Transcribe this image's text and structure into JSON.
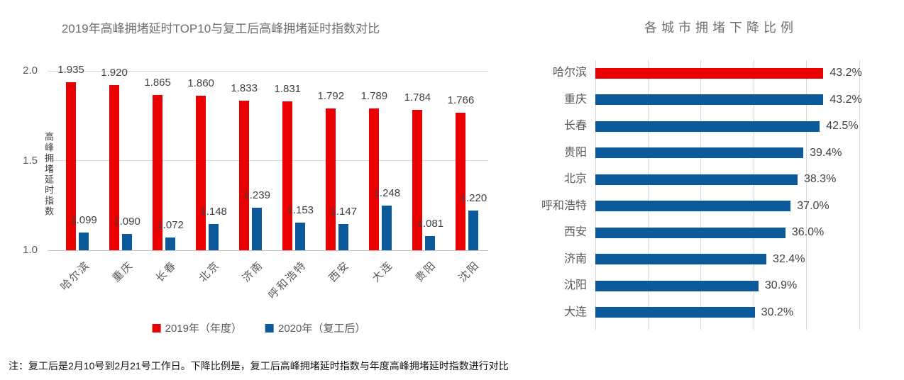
{
  "note": "注：复工后是2月10号到2月21号工作日。下降比例是，复工后高峰拥堵延时指数与年度高峰拥堵延时指数进行对比",
  "colors": {
    "red": "#ea0000",
    "blue": "#0d5a9b",
    "gridline": "#d9d9d9",
    "title_text": "#6e6e6e",
    "axis_text": "#595959",
    "value_text": "#404040"
  },
  "chart_data": [
    {
      "type": "bar",
      "orientation": "vertical",
      "title": "2019年高峰拥堵延时TOP10与复工后高峰拥堵延时指数对比",
      "xlabel": "",
      "ylabel": "高峰拥堵延时指数",
      "categories": [
        "哈尔滨",
        "重庆",
        "长春",
        "北京",
        "济南",
        "呼和浩特",
        "西安",
        "大连",
        "贵阳",
        "沈阳"
      ],
      "series": [
        {
          "name": "2019年（年度）",
          "color": "#ea0000",
          "values": [
            1.935,
            1.92,
            1.865,
            1.86,
            1.833,
            1.831,
            1.792,
            1.789,
            1.784,
            1.766
          ],
          "labels": [
            "1.935",
            "1.920",
            "1.865",
            "1.860",
            "1.833",
            "1.831",
            "1.792",
            "1.789",
            "1.784",
            "1.766"
          ]
        },
        {
          "name": "2020年（复工后）",
          "color": "#0d5a9b",
          "values": [
            1.099,
            1.09,
            1.072,
            1.148,
            1.239,
            1.153,
            1.147,
            1.248,
            1.081,
            1.22
          ],
          "labels": [
            "1.099",
            "1.090",
            "1.072",
            "1.148",
            "1.239",
            "1.153",
            "1.147",
            "1.248",
            "1.081",
            "1.220"
          ]
        }
      ],
      "ylim": [
        1.0,
        2.0
      ],
      "yticks": [
        {
          "value": 2.0,
          "label": "2.0"
        },
        {
          "value": 1.5,
          "label": "1.5"
        },
        {
          "value": 1.0,
          "label": "1.0"
        }
      ],
      "grid": true,
      "legend_position": "bottom"
    },
    {
      "type": "bar",
      "orientation": "horizontal",
      "title": "各城市拥堵下降比例",
      "xlabel": "",
      "ylabel": "",
      "categories": [
        "哈尔滨",
        "重庆",
        "长春",
        "贵阳",
        "北京",
        "呼和浩特",
        "西安",
        "济南",
        "沈阳",
        "大连"
      ],
      "values": [
        43.2,
        43.2,
        42.5,
        39.4,
        38.3,
        37.0,
        36.0,
        32.4,
        30.9,
        30.2
      ],
      "labels": [
        "43.2%",
        "43.2%",
        "42.5%",
        "39.4%",
        "38.3%",
        "37.0%",
        "36.0%",
        "32.4%",
        "30.9%",
        "30.2%"
      ],
      "bar_colors": [
        "#ea0000",
        "#0d5a9b",
        "#0d5a9b",
        "#0d5a9b",
        "#0d5a9b",
        "#0d5a9b",
        "#0d5a9b",
        "#0d5a9b",
        "#0d5a9b",
        "#0d5a9b"
      ],
      "xlim": [
        0,
        50
      ],
      "grid_interval": 10,
      "grid": true,
      "legend_position": "none"
    }
  ]
}
